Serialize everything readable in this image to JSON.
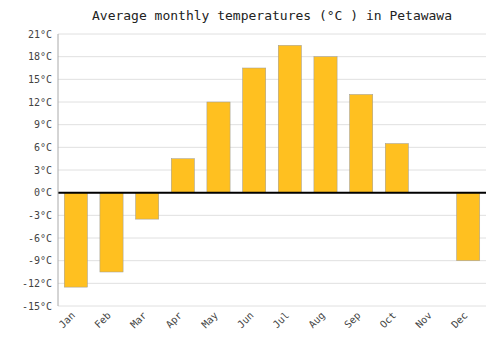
{
  "chart_data": {
    "type": "bar",
    "title": "Average monthly temperatures (°C ) in Petawawa",
    "categories": [
      "Jan",
      "Feb",
      "Mar",
      "Apr",
      "May",
      "Jun",
      "Jul",
      "Aug",
      "Sep",
      "Oct",
      "Nov",
      "Dec"
    ],
    "values": [
      -12.5,
      -10.5,
      -3.5,
      4.5,
      12.0,
      16.5,
      19.5,
      18.0,
      13.0,
      6.5,
      0.0,
      -9.0
    ],
    "color": "#FFC020",
    "ylim": [
      -15,
      21
    ],
    "yticks": [
      {
        "value": -15,
        "label": "-15°C"
      },
      {
        "value": -12,
        "label": "-12°C"
      },
      {
        "value": -9,
        "label": "-9°C"
      },
      {
        "value": -6,
        "label": "-6°C"
      },
      {
        "value": -3,
        "label": "-3°C"
      },
      {
        "value": 0,
        "label": "0°C"
      },
      {
        "value": 3,
        "label": "3°C"
      },
      {
        "value": 6,
        "label": "6°C"
      },
      {
        "value": 9,
        "label": "9°C"
      },
      {
        "value": 12,
        "label": "12°C"
      },
      {
        "value": 15,
        "label": "15°C"
      },
      {
        "value": 18,
        "label": "18°C"
      },
      {
        "value": 21,
        "label": "21°C"
      }
    ],
    "grid": true
  }
}
